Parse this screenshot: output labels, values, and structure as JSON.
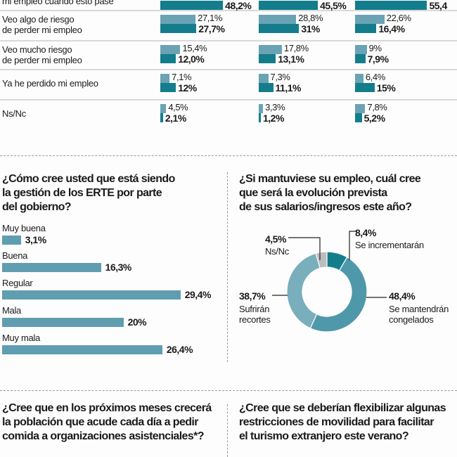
{
  "chart_data": [
    {
      "type": "bar",
      "title": "",
      "series": [
        {
          "name": "light",
          "color": "#6aa3b4"
        },
        {
          "name": "dark",
          "color": "#137d8c"
        }
      ],
      "categories": [
        "mi empleo cuando esto pase",
        "Veo algo de riesgo de perder mi empleo",
        "Veo mucho riesgo de perder mi empleo",
        "Ya he perdido mi empleo",
        "Ns/Nc"
      ],
      "rows": [
        {
          "label_lines": [
            "mi empleo cuando esto pase"
          ],
          "groups": [
            {
              "light": null,
              "light_label": "",
              "dark": 48.2,
              "dark_label": "48,2%"
            },
            {
              "light": null,
              "light_label": "",
              "dark": 45.5,
              "dark_label": "45,5%"
            },
            {
              "light": null,
              "light_label": "",
              "dark": 55.4,
              "dark_label": "55,4"
            }
          ]
        },
        {
          "label_lines": [
            "Veo algo de riesgo",
            "de perder mi empleo"
          ],
          "groups": [
            {
              "light": 27.1,
              "light_label": "27,1%",
              "dark": 27.7,
              "dark_label": "27,7%"
            },
            {
              "light": 28.8,
              "light_label": "28,8%",
              "dark": 31,
              "dark_label": "31%"
            },
            {
              "light": 22.6,
              "light_label": "22,6%",
              "dark": 16.4,
              "dark_label": "16,4%"
            }
          ]
        },
        {
          "label_lines": [
            "Veo mucho riesgo",
            "de perder mi empleo"
          ],
          "groups": [
            {
              "light": 15.4,
              "light_label": "15,4%",
              "dark": 12.0,
              "dark_label": "12,0%"
            },
            {
              "light": 17.8,
              "light_label": "17,8%",
              "dark": 13.1,
              "dark_label": "13,1%"
            },
            {
              "light": 9,
              "light_label": "9%",
              "dark": 7.9,
              "dark_label": "7,9%"
            }
          ]
        },
        {
          "label_lines": [
            "Ya he perdido mi empleo"
          ],
          "groups": [
            {
              "light": 7.1,
              "light_label": "7,1%",
              "dark": 12,
              "dark_label": "12%"
            },
            {
              "light": 7.3,
              "light_label": "7,3%",
              "dark": 11.1,
              "dark_label": "11,1%"
            },
            {
              "light": 6.4,
              "light_label": "6,4%",
              "dark": 15,
              "dark_label": "15%"
            }
          ]
        },
        {
          "label_lines": [
            "Ns/Nc"
          ],
          "groups": [
            {
              "light": 4.5,
              "light_label": "4,5%",
              "dark": 2.1,
              "dark_label": "2,1%"
            },
            {
              "light": 3.3,
              "light_label": "3,3%",
              "dark": 1.2,
              "dark_label": "1,2%"
            },
            {
              "light": 7.8,
              "light_label": "7,8%",
              "dark": 5.2,
              "dark_label": "5,2%"
            }
          ]
        }
      ]
    },
    {
      "type": "bar",
      "orientation": "horizontal",
      "title": "¿Cómo cree usted que está siendo la gestión de los ERTE por parte del gobierno?",
      "title_lines": [
        "¿Cómo cree usted que está siendo",
        "la gestión de los ERTE por parte",
        "del gobierno?"
      ],
      "categories": [
        "Muy buena",
        "Buena",
        "Regular",
        "Mala",
        "Muy mala"
      ],
      "values": [
        3.1,
        16.3,
        29.4,
        20,
        26.4
      ],
      "value_labels": [
        "3,1%",
        "16,3%",
        "29,4%",
        "20%",
        "26,4%"
      ],
      "color": "#5f9db0"
    },
    {
      "type": "pie",
      "donut": true,
      "title": "¿Si mantuviese su empleo, cuál cree que será la evolución prevista de sus salarios/ingresos este año?",
      "title_lines": [
        "¿Si mantuviese su empleo, cuál cree",
        "que será la evolución prevista",
        "de sus salarios/ingresos este año?"
      ],
      "slices": [
        {
          "label": "Se incrementarán",
          "label_lines": [
            "Se incrementarán"
          ],
          "value": 8.4,
          "value_label": "8,4%",
          "color": "#137d8c"
        },
        {
          "label": "Se mantendrán congelados",
          "label_lines": [
            "Se mantendrán",
            "congelados"
          ],
          "value": 48.4,
          "value_label": "48,4%",
          "color": "#4f98aa"
        },
        {
          "label": "Sufrirán recortes",
          "label_lines": [
            "Sufrirán",
            "recortes"
          ],
          "value": 38.7,
          "value_label": "38,7%",
          "color": "#79aebd"
        },
        {
          "label": "Ns/Nc",
          "label_lines": [
            "Ns/Nc"
          ],
          "value": 4.5,
          "value_label": "4,5%",
          "color": "#bdbdbd"
        }
      ]
    }
  ],
  "bottom_questions": {
    "left_lines": [
      "¿Cree que en los próximos meses crecerá",
      "la población que acude cada día a pedir",
      "comida a organizaciones asistenciales*?"
    ],
    "right_lines": [
      "¿Cree que se deberían flexibilizar algunas",
      "restricciones de movilidad para facilitar",
      "el turismo extranjero este verano?"
    ]
  }
}
